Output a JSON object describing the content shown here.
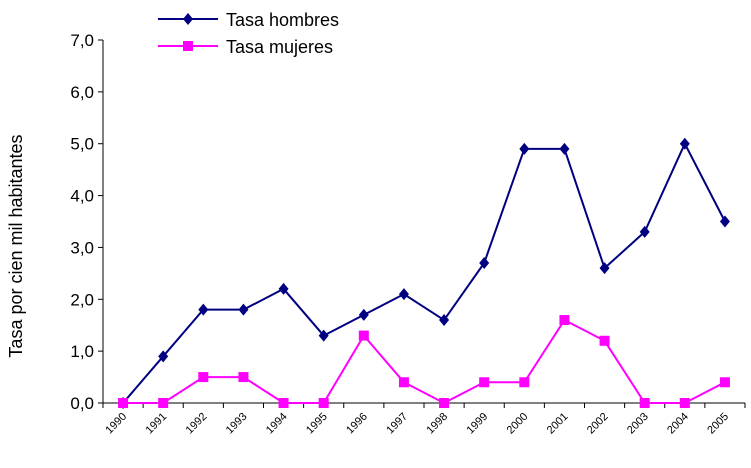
{
  "chart_data": {
    "type": "line",
    "title": "",
    "xlabel": "",
    "ylabel": "Tasa por cien mil habitantes",
    "ylim": [
      0,
      7
    ],
    "yticks": [
      "0,0",
      "1,0",
      "2,0",
      "3,0",
      "4,0",
      "5,0",
      "6,0",
      "7,0"
    ],
    "categories": [
      "1990",
      "1991",
      "1992",
      "1993",
      "1994",
      "1995",
      "1996",
      "1997",
      "1998",
      "1999",
      "2000",
      "2001",
      "2002",
      "2003",
      "2004",
      "2005"
    ],
    "grid": false,
    "legend_position": "top-center",
    "series": [
      {
        "name": "Tasa hombres",
        "color": "#000080",
        "marker": "diamond",
        "values": [
          0.0,
          0.9,
          1.8,
          1.8,
          2.2,
          1.3,
          1.7,
          2.1,
          1.6,
          2.7,
          4.9,
          4.9,
          2.6,
          3.3,
          5.0,
          3.5
        ]
      },
      {
        "name": "Tasa mujeres",
        "color": "#FF00FF",
        "marker": "square",
        "values": [
          0.0,
          0.0,
          0.5,
          0.5,
          0.0,
          0.0,
          1.3,
          0.4,
          0.0,
          0.4,
          0.4,
          1.6,
          1.2,
          0.0,
          0.0,
          0.4
        ]
      }
    ]
  }
}
